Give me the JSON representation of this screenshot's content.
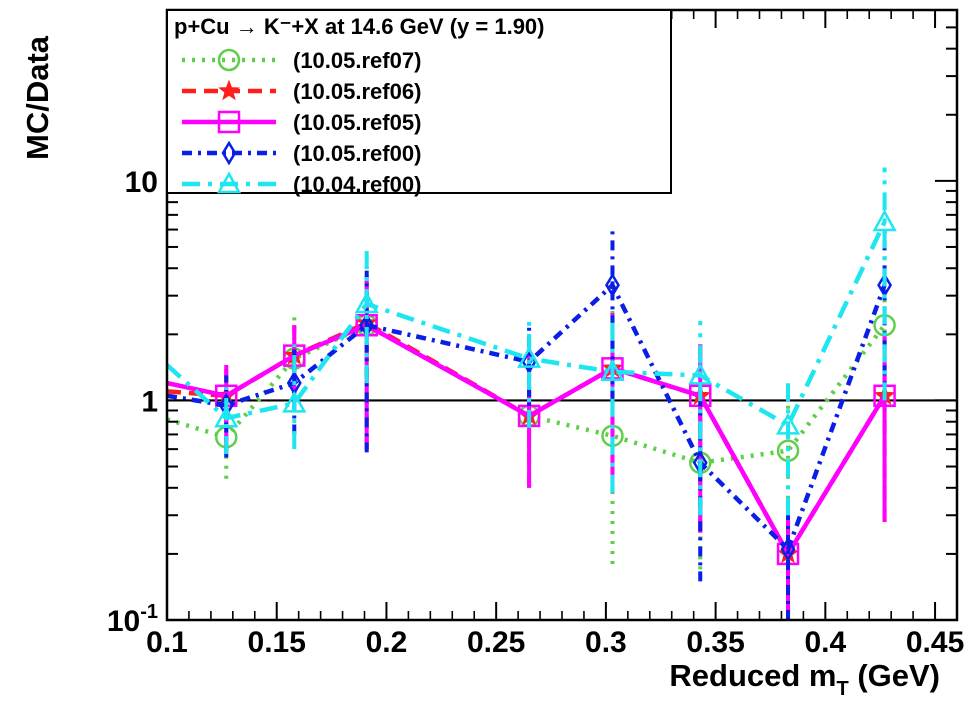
{
  "chart_data": {
    "type": "line",
    "title": "p+Cu → K⁻+X at 14.6 GeV (y = 1.90)",
    "xlabel": "Reduced m",
    "xlabel_sub": "T",
    "xlabel_unit": " (GeV)",
    "ylabel": "MC/Data",
    "xlim": [
      0.1,
      0.46
    ],
    "ylim": [
      0.1,
      60
    ],
    "yscale": "log",
    "x_ticks": [
      0.1,
      0.15,
      0.2,
      0.25,
      0.3,
      0.35,
      0.4,
      0.45
    ],
    "x_tick_labels": [
      "0.1",
      "0.15",
      "0.2",
      "0.25",
      "0.3",
      "0.35",
      "0.4",
      "0.45"
    ],
    "y_tick_labels": [
      {
        "value": 0.1,
        "base": "10",
        "exp": "-1"
      },
      {
        "value": 1,
        "base": "1",
        "exp": ""
      },
      {
        "value": 10,
        "base": "10",
        "exp": ""
      }
    ],
    "reference_line": 1,
    "legend_position": "top-left",
    "series": [
      {
        "name": "(10.05.ref07)",
        "color": "#5ecf4a",
        "dash": "3,7",
        "marker": "circle",
        "x": [
          0.127,
          0.158,
          0.191,
          0.265,
          0.303,
          0.343,
          0.383,
          0.427
        ],
        "y": [
          0.68,
          1.55,
          2.2,
          0.85,
          0.69,
          0.52,
          0.59,
          2.2
        ],
        "err_low": [
          0.44,
          1.0,
          0.6,
          0.55,
          0.18,
          0.17,
          0.19,
          0.58
        ],
        "err_high": [
          1.1,
          2.4,
          4.5,
          1.4,
          2.6,
          1.8,
          1.15,
          3.4
        ]
      },
      {
        "name": "(10.05.ref06)",
        "color": "#ff1e1e",
        "dash": "14,8",
        "marker": "star",
        "x": [
          0.127,
          0.158,
          0.191,
          0.265,
          0.303,
          0.343,
          0.383,
          0.427
        ],
        "y": [
          1.05,
          1.6,
          2.25,
          0.85,
          1.4,
          1.05,
          0.2,
          1.05
        ],
        "err_low": [
          0.6,
          1.0,
          0.6,
          0.4,
          0.38,
          0.25,
          0.1,
          0.28
        ],
        "err_high": [
          1.45,
          2.2,
          3.7,
          1.7,
          2.5,
          1.8,
          0.3,
          2.0
        ]
      },
      {
        "name": "(10.05.ref05)",
        "color": "#ff00ff",
        "dash": "",
        "marker": "square",
        "x": [
          0.127,
          0.158,
          0.191,
          0.265,
          0.303,
          0.343,
          0.383,
          0.427
        ],
        "y": [
          1.05,
          1.6,
          2.2,
          0.85,
          1.4,
          1.05,
          0.2,
          1.05
        ],
        "err_low": [
          0.6,
          1.0,
          0.6,
          0.4,
          0.38,
          0.25,
          0.1,
          0.28
        ],
        "err_high": [
          1.45,
          2.2,
          3.7,
          1.7,
          2.5,
          1.8,
          0.3,
          2.0
        ]
      },
      {
        "name": "(10.05.ref00)",
        "color": "#0a1ee6",
        "dash": "10,6,3,6",
        "marker": "diamond",
        "x": [
          0.127,
          0.158,
          0.191,
          0.265,
          0.303,
          0.343,
          0.383,
          0.427
        ],
        "y": [
          0.95,
          1.2,
          2.2,
          1.5,
          3.35,
          0.52,
          0.21,
          3.35
        ],
        "err_low": [
          0.55,
          0.7,
          0.58,
          0.8,
          1.0,
          0.15,
          0.1,
          1.0
        ],
        "err_high": [
          1.3,
          1.8,
          3.9,
          2.2,
          6.0,
          1.0,
          0.3,
          6.0
        ]
      },
      {
        "name": "(10.04.ref00)",
        "color": "#1ee6f0",
        "dash": "18,8,4,8",
        "marker": "triangle",
        "x": [
          0.127,
          0.158,
          0.191,
          0.265,
          0.303,
          0.343,
          0.383,
          0.427
        ],
        "y": [
          0.83,
          0.97,
          2.75,
          1.55,
          1.35,
          1.3,
          0.77,
          6.5
        ],
        "err_low": [
          0.57,
          0.6,
          1.2,
          0.75,
          0.38,
          0.3,
          0.3,
          1.0
        ],
        "err_high": [
          1.15,
          1.8,
          5.0,
          2.4,
          2.3,
          2.3,
          1.25,
          11.5
        ]
      }
    ]
  }
}
